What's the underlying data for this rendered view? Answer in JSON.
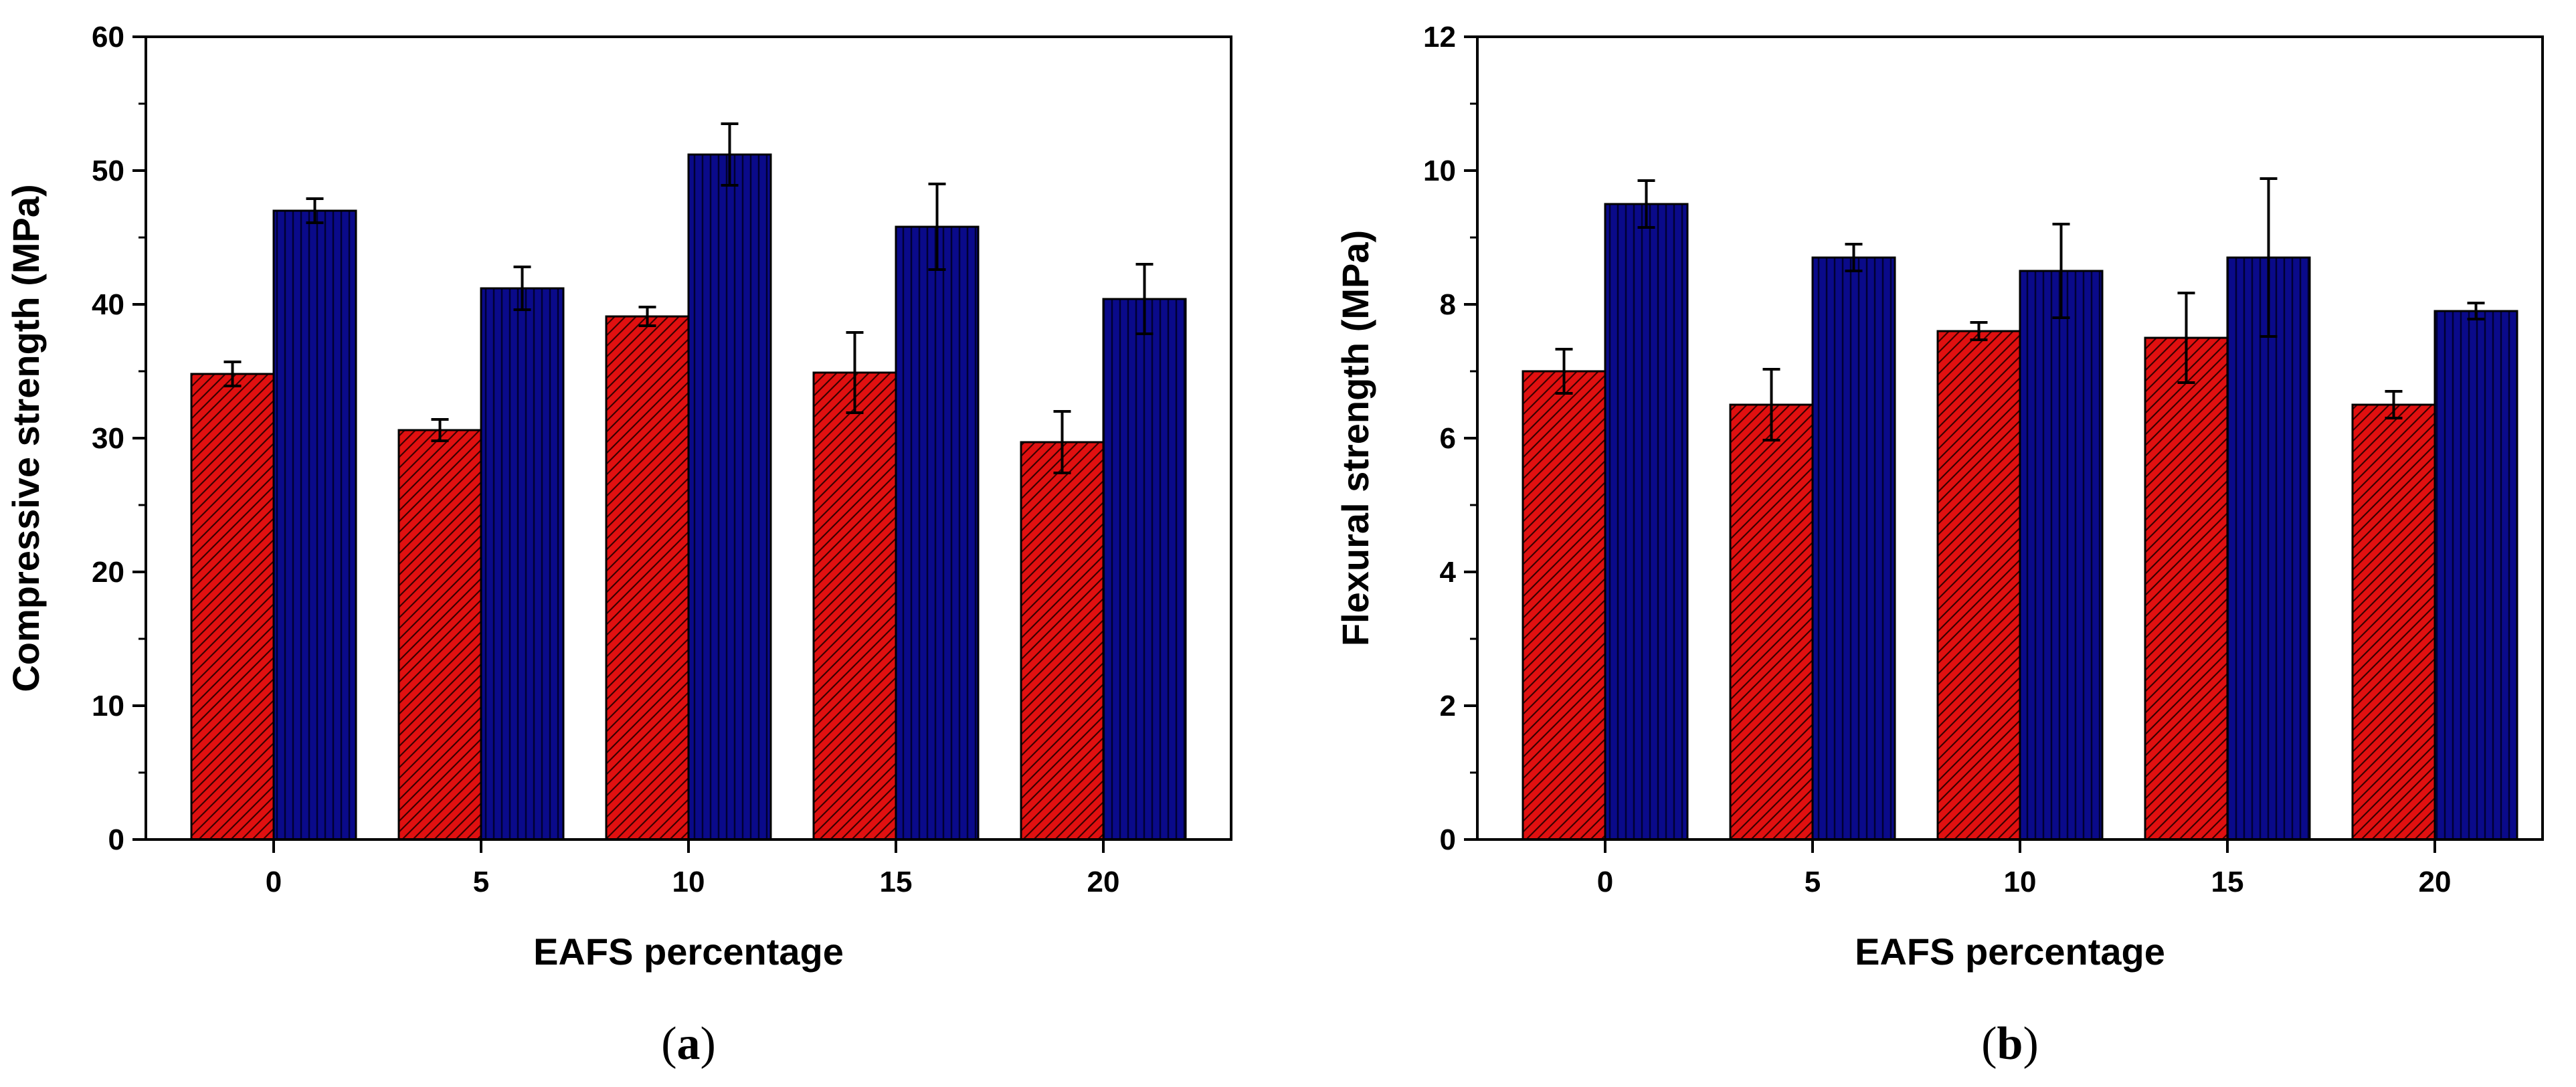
{
  "colors": {
    "series_a": "#e01010",
    "series_a_hatch": "#3a0000",
    "series_b": "#0a0a8a",
    "series_b_hatch": "#000033",
    "axis": "#000000",
    "background": "#ffffff"
  },
  "chart_data": [
    {
      "type": "bar",
      "panel_label": "(a)",
      "panel_letter": "a",
      "xlabel": "EAFS percentage",
      "ylabel": "Compressive strength (MPa)",
      "categories": [
        "0",
        "5",
        "10",
        "15",
        "20"
      ],
      "ylim": [
        0,
        60
      ],
      "yticks": [
        0,
        10,
        20,
        30,
        40,
        50,
        60
      ],
      "ytick_labels": [
        "0",
        "10",
        "20",
        "30",
        "40",
        "50",
        "60"
      ],
      "minor_ticks": true,
      "grid": false,
      "legend": "none",
      "series": [
        {
          "fill": "hatched-red",
          "values": [
            34.8,
            30.6,
            39.1,
            34.9,
            29.7
          ],
          "errors": [
            0.9,
            0.8,
            0.7,
            3.0,
            2.3
          ]
        },
        {
          "fill": "hatched-blue",
          "values": [
            47.0,
            41.2,
            51.2,
            45.8,
            40.4
          ],
          "errors": [
            0.9,
            1.6,
            2.3,
            3.2,
            2.6
          ]
        }
      ]
    },
    {
      "type": "bar",
      "panel_label": "(b)",
      "panel_letter": "b",
      "xlabel": "EAFS percentage",
      "ylabel": "Flexural strength (MPa)",
      "categories": [
        "0",
        "5",
        "10",
        "15",
        "20"
      ],
      "ylim": [
        0,
        12
      ],
      "yticks": [
        0,
        2,
        4,
        6,
        8,
        10,
        12
      ],
      "ytick_labels": [
        "0",
        "2",
        "4",
        "6",
        "8",
        "10",
        "12"
      ],
      "minor_ticks": true,
      "grid": false,
      "legend": "none",
      "series": [
        {
          "fill": "hatched-red",
          "values": [
            7.0,
            6.5,
            7.6,
            7.5,
            6.5
          ],
          "errors": [
            0.33,
            0.53,
            0.13,
            0.67,
            0.2
          ]
        },
        {
          "fill": "hatched-blue",
          "values": [
            9.5,
            8.7,
            8.5,
            8.7,
            7.9
          ],
          "errors": [
            0.35,
            0.2,
            0.7,
            1.18,
            0.12
          ]
        }
      ]
    }
  ]
}
